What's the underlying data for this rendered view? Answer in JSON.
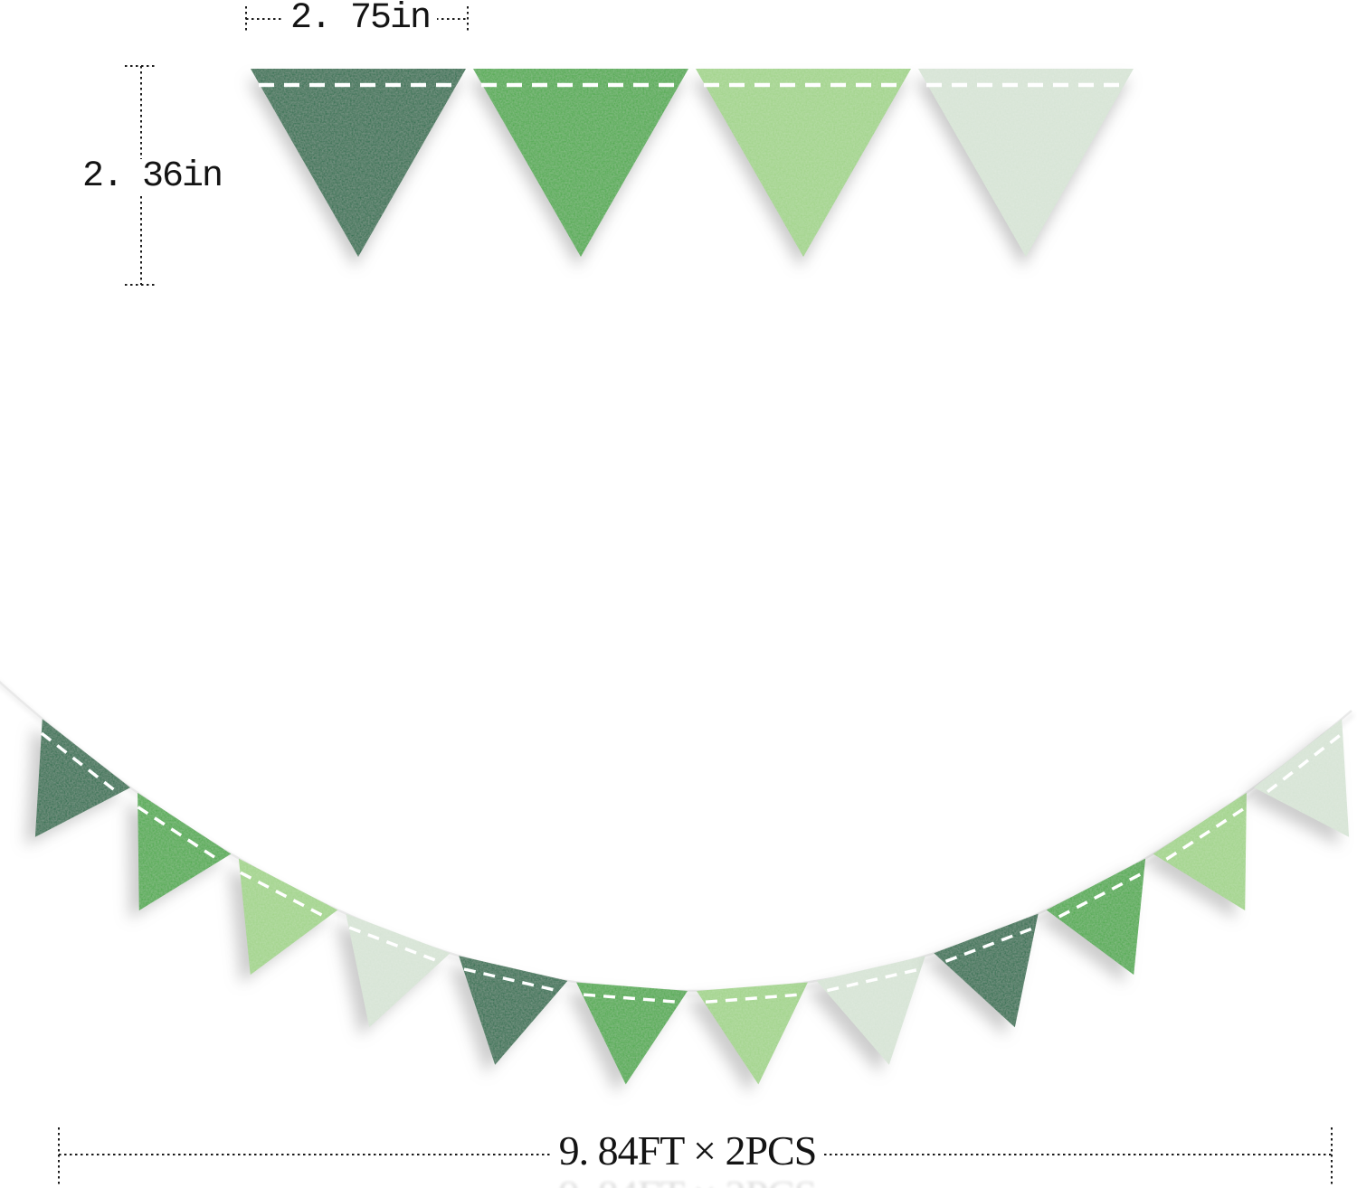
{
  "measurements": {
    "flag_width_label": "2. 75in",
    "flag_height_label": "2. 36in",
    "garland_length_label": "9. 84FT × 2PCS"
  },
  "colors": {
    "dark_green": "#1e6a46",
    "green": "#47a845",
    "light_green": "#9fd386",
    "pale_green": "#d5e3d4",
    "stitch": "#ffffff",
    "string": "#e9e9e9",
    "dimension_line": "#1b1b1b",
    "text": "#141414",
    "background": "#ffffff"
  },
  "top_row_flags": [
    "dark_green",
    "green",
    "light_green",
    "pale_green"
  ],
  "garland_flags": [
    "dark_green",
    "green",
    "light_green",
    "pale_green",
    "dark_green",
    "green",
    "light_green",
    "pale_green",
    "dark_green",
    "green",
    "light_green",
    "pale_green"
  ]
}
